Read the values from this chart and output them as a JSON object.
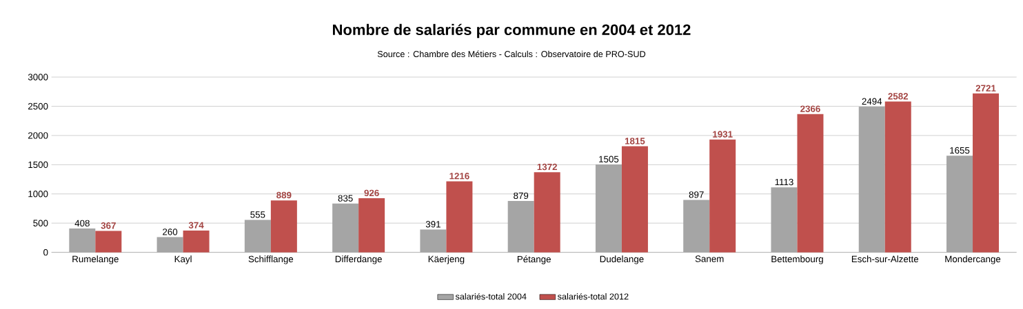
{
  "chart_data": {
    "type": "bar",
    "title": "Nombre de salariés par commune en 2004 et 2012",
    "subtitle": "Source : Chambre des Métiers  - Calculs : Observatoire de PRO-SUD",
    "categories": [
      "Rumelange",
      "Kayl",
      "Schifflange",
      "Differdange",
      "Käerjeng",
      "Pétange",
      "Dudelange",
      "Sanem",
      "Bettembourg",
      "Esch-sur-Alzette",
      "Mondercange"
    ],
    "series": [
      {
        "name": "salariés-total 2004",
        "color": "#a5a5a5",
        "values": [
          408,
          260,
          555,
          835,
          391,
          879,
          1505,
          897,
          1113,
          2494,
          1655
        ]
      },
      {
        "name": "salariés-total 2012",
        "color": "#c0504d",
        "values": [
          367,
          374,
          889,
          926,
          1216,
          1372,
          1815,
          1931,
          2366,
          2582,
          2721
        ]
      }
    ],
    "ylim": [
      0,
      3000
    ],
    "yticks": [
      0,
      500,
      1000,
      1500,
      2000,
      2500,
      3000
    ],
    "grid": "y",
    "legend": "bottom",
    "data_labels": true
  }
}
